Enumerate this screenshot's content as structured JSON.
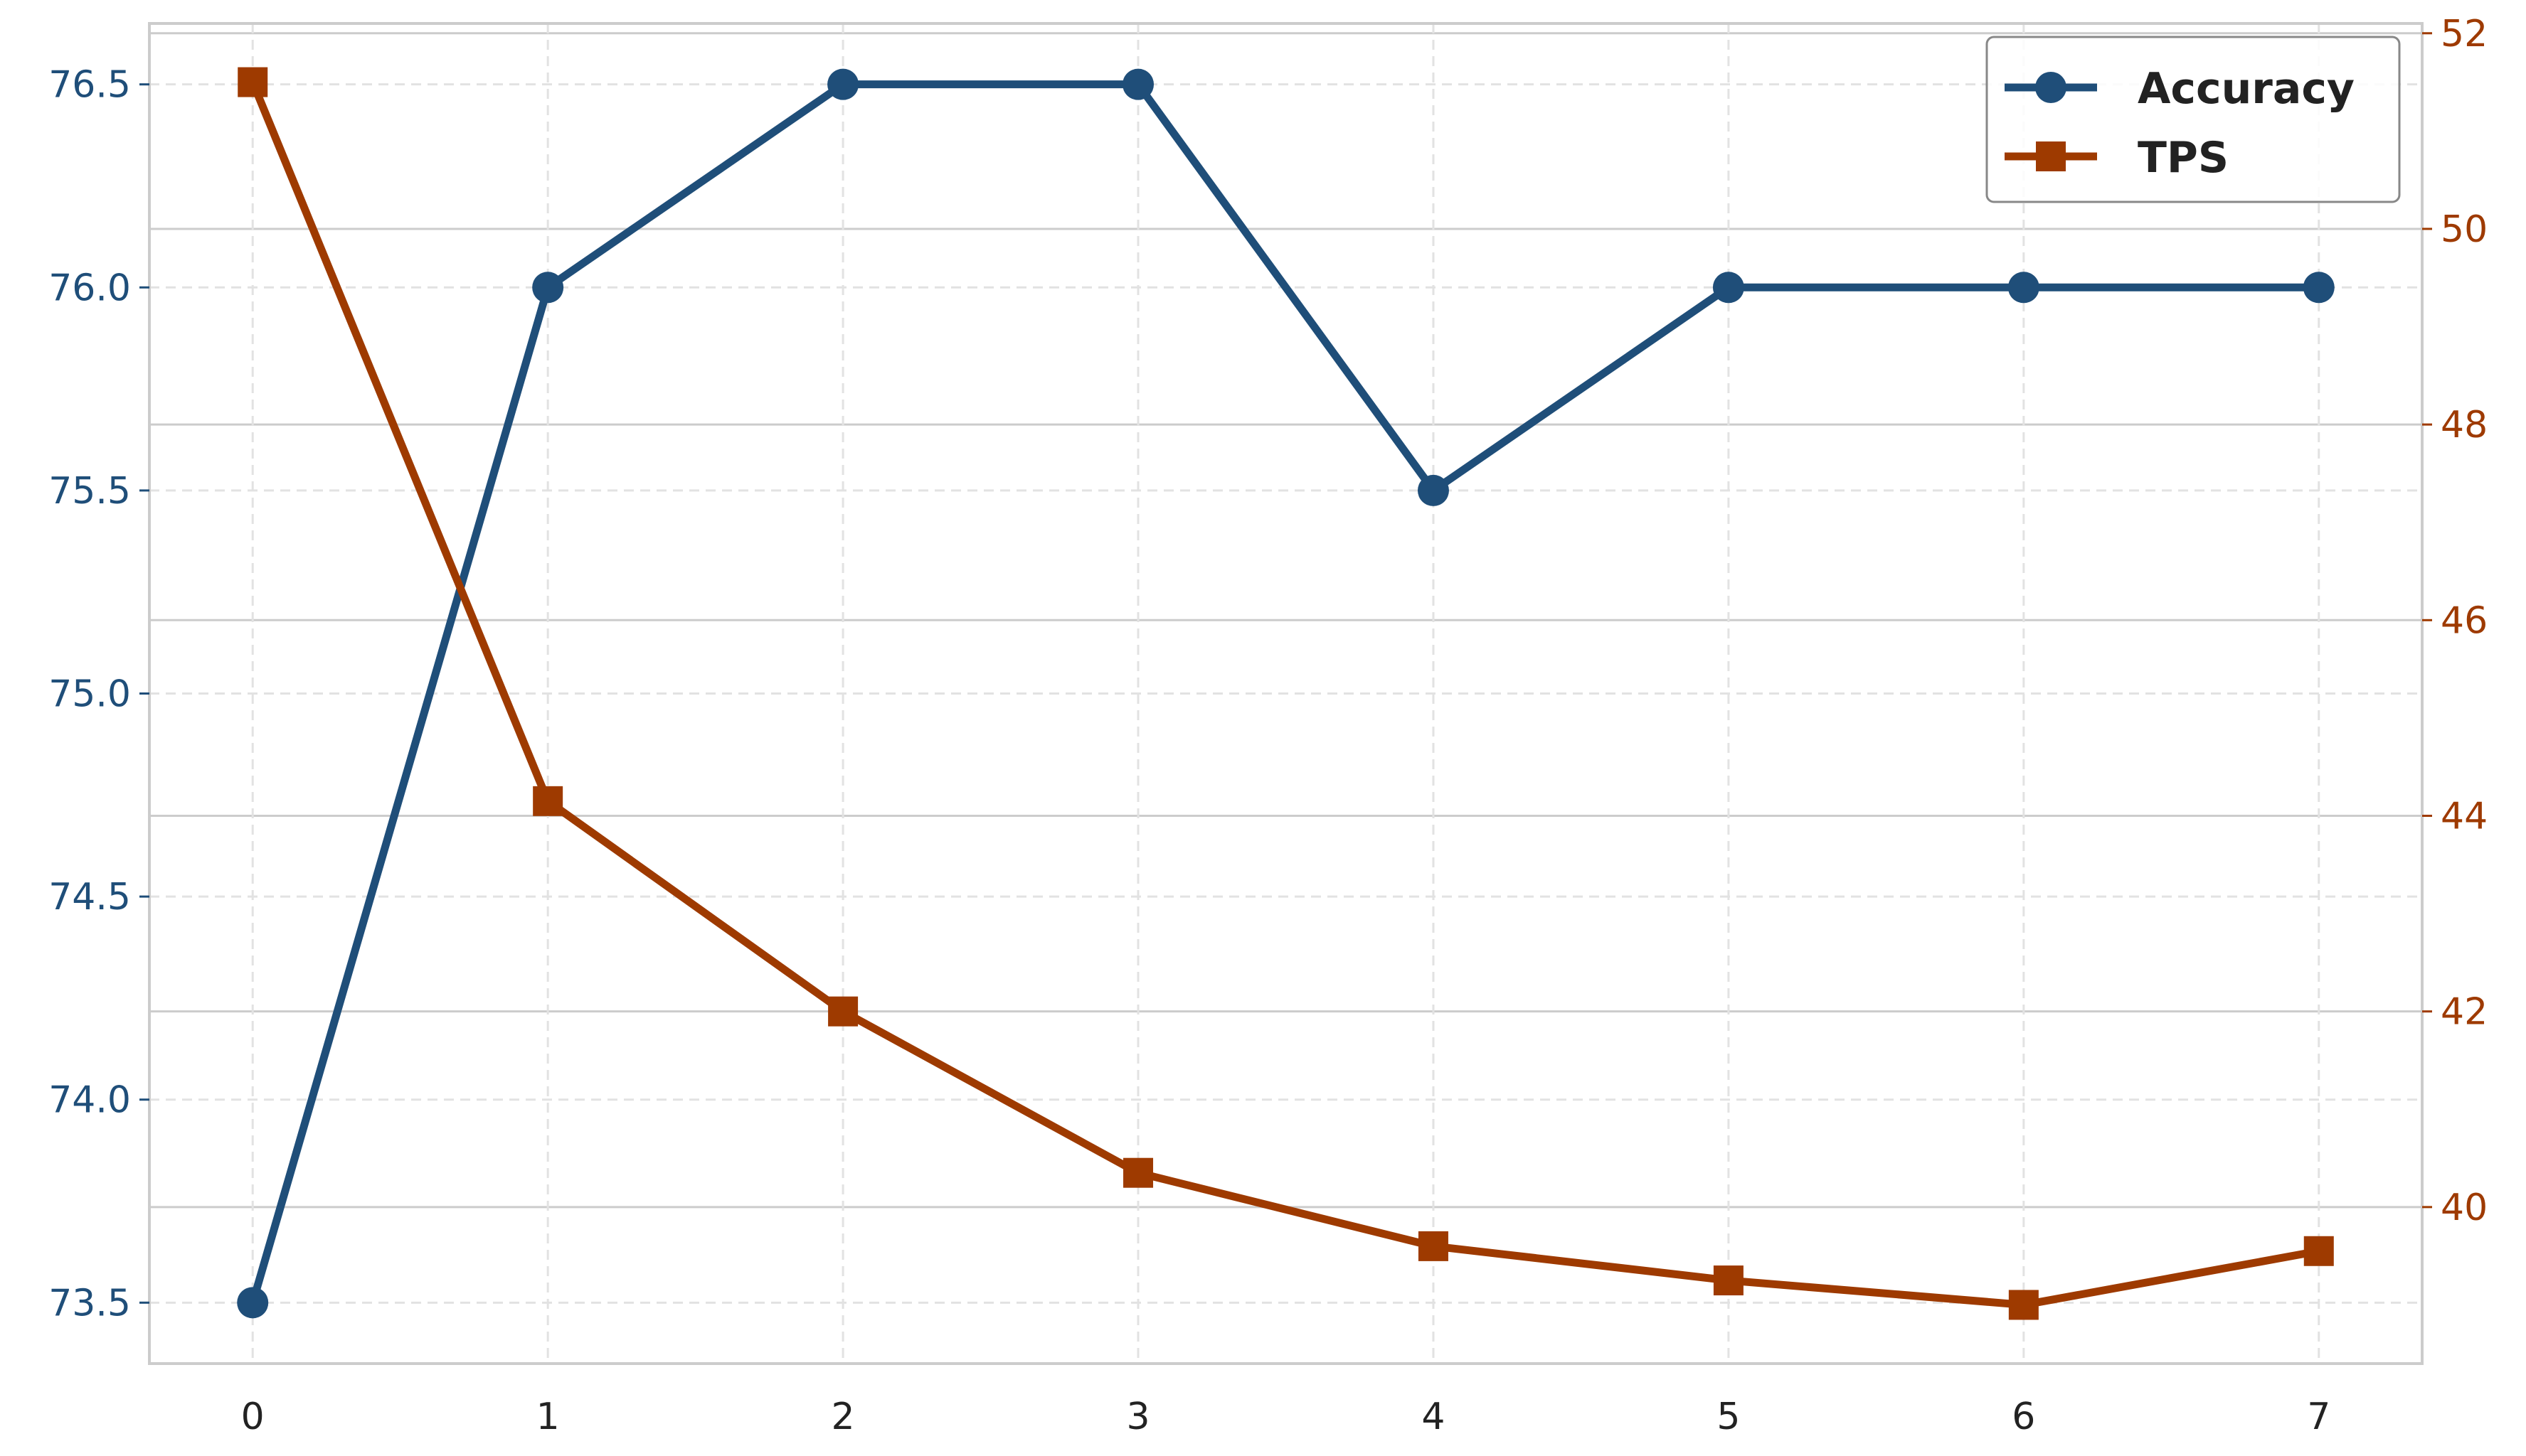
{
  "chart_data": {
    "type": "line",
    "x": [
      0,
      1,
      2,
      3,
      4,
      5,
      6,
      7
    ],
    "x_ticks": [
      "0",
      "1",
      "2",
      "3",
      "4",
      "5",
      "6",
      "7"
    ],
    "xlim": [
      -0.35,
      7.35
    ],
    "y_left": {
      "ticks": [
        "73.5",
        "74.0",
        "74.5",
        "75.0",
        "75.5",
        "76.0",
        "76.5"
      ],
      "tick_values": [
        73.5,
        74.0,
        74.5,
        75.0,
        75.5,
        76.0,
        76.5
      ],
      "ylim": [
        73.35,
        76.65
      ],
      "color": "#1f4e79"
    },
    "y_right": {
      "ticks": [
        "40",
        "42",
        "44",
        "46",
        "48",
        "50",
        "52"
      ],
      "tick_values": [
        40,
        42,
        44,
        46,
        48,
        50,
        52
      ],
      "ylim": [
        38.4,
        52.1
      ],
      "color": "#9e3a00"
    },
    "series": [
      {
        "name": "Accuracy",
        "axis": "left",
        "marker": "circle",
        "color": "#1f4e79",
        "values": [
          73.5,
          76.0,
          76.5,
          76.5,
          75.5,
          76.0,
          76.0,
          76.0
        ]
      },
      {
        "name": "TPS",
        "axis": "right",
        "marker": "square",
        "color": "#9e3a00",
        "values": [
          51.5,
          44.15,
          42.0,
          40.35,
          39.6,
          39.25,
          39.0,
          39.55
        ]
      }
    ],
    "grid": true,
    "legend_position": "top-right"
  }
}
